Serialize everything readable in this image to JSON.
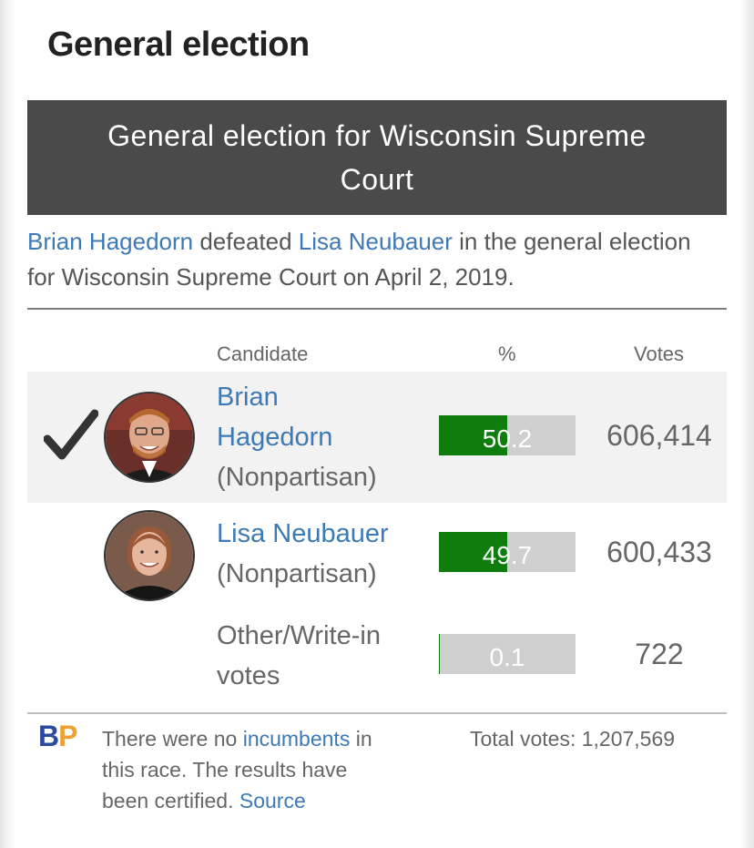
{
  "page": {
    "title": "General election"
  },
  "race": {
    "header": "General election for Wisconsin Supreme Court",
    "summary": {
      "winner": "Brian Hagedorn",
      "verb": " defeated ",
      "loser": "Lisa Neubauer",
      "rest": " in the general election for Wisconsin Supreme Court on April 2, 2019."
    }
  },
  "table": {
    "headers": {
      "candidate": "Candidate",
      "pct": "%",
      "votes": "Votes"
    },
    "rows": [
      {
        "name_line1": "Brian",
        "name_line2": "Hagedorn",
        "party": "(Nonpartisan)",
        "pct": "50.2",
        "pct_value": 50.2,
        "votes": "606,414",
        "winner": true
      },
      {
        "name": "Lisa Neubauer",
        "party": "(Nonpartisan)",
        "pct": "49.7",
        "pct_value": 49.7,
        "votes": "600,433",
        "winner": false
      },
      {
        "other_line1": "Other/Write-in",
        "other_line2": "votes",
        "pct": "0.1",
        "pct_value": 0.1,
        "votes": "722"
      }
    ]
  },
  "footer": {
    "logo_b": "B",
    "logo_p": "P",
    "note_part1": "There were no ",
    "note_link": "incumbents",
    "note_part2": " in this race. The results have been certified. ",
    "source": "Source",
    "total_votes": "Total votes: 1,207,569"
  },
  "colors": {
    "header_bg": "#4a4a4a",
    "link": "#3d7ab5",
    "bar_fill": "#0e7d0e",
    "bar_bg": "#cfcfcf"
  },
  "icons": {
    "winner": "checkmark-icon"
  }
}
